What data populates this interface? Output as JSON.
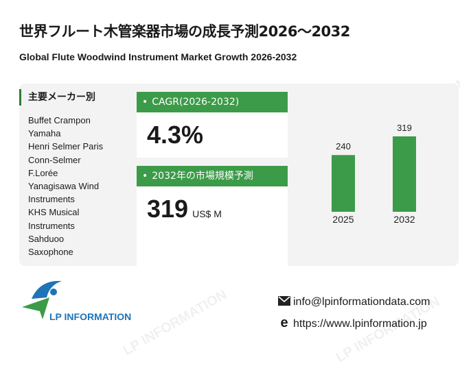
{
  "title_jp": "世界フルート木管楽器市場の成長予測2026～2032",
  "title_en": "Global Flute Woodwind Instrument Market Growth 2026-2032",
  "companies": {
    "heading": "主要メーカー別",
    "items": [
      "Buffet Crampon",
      "Yamaha",
      "Henri Selmer Paris",
      "Conn-Selmer",
      "F.Lorée",
      "Yanagisawa Wind",
      "Instruments",
      "KHS Musical",
      "Instruments",
      "Sahduoo",
      "Saxophone"
    ]
  },
  "cagr": {
    "label": "CAGR(2026-2032)",
    "value": "4.3%"
  },
  "market_size": {
    "label": "2032年の市場規模予測",
    "value": "319",
    "unit": "US$ M"
  },
  "chart_data": {
    "type": "bar",
    "categories": [
      "2025",
      "2032"
    ],
    "values": [
      240,
      319
    ],
    "title": "",
    "xlabel": "",
    "ylabel": "",
    "ylim": [
      0,
      319
    ],
    "grid": false,
    "color": "#3c9b48"
  },
  "footer": {
    "logo_text": "LP INFORMATION",
    "email": "info@lpinformationdata.com",
    "website": "https://www.lpinformation.jp"
  },
  "watermark_text": "LP INFORMATION",
  "colors": {
    "accent": "#3c9b48",
    "logo_blue": "#1f73b7",
    "panel_bg": "#f3f3f3"
  }
}
